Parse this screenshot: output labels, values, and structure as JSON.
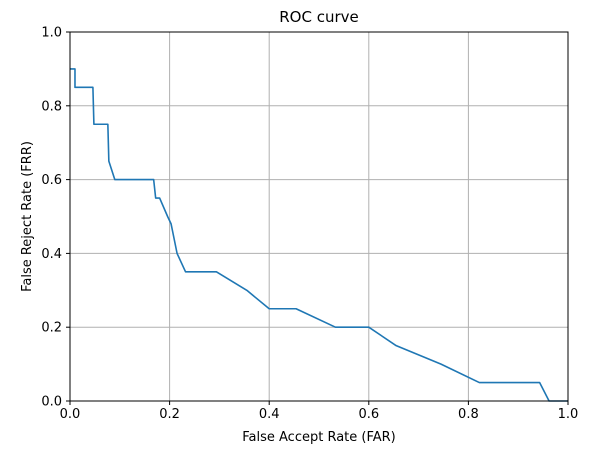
{
  "chart_data": {
    "type": "line",
    "title": "ROC curve",
    "xlabel": "False Accept Rate (FAR)",
    "ylabel": "False Reject Rate (FRR)",
    "xlim": [
      0,
      1
    ],
    "ylim": [
      0,
      1
    ],
    "xticks": [
      0.0,
      0.2,
      0.4,
      0.6,
      0.8,
      1.0
    ],
    "yticks": [
      0.0,
      0.2,
      0.4,
      0.6,
      0.8,
      1.0
    ],
    "xtick_labels": [
      "0.0",
      "0.2",
      "0.4",
      "0.6",
      "0.8",
      "1.0"
    ],
    "ytick_labels": [
      "0.0",
      "0.2",
      "0.4",
      "0.6",
      "0.8",
      "1.0"
    ],
    "grid": true,
    "series": [
      {
        "color": "#1f77b4",
        "x": [
          0.0,
          0.01,
          0.01,
          0.046,
          0.048,
          0.076,
          0.078,
          0.09,
          0.168,
          0.172,
          0.18,
          0.196,
          0.203,
          0.215,
          0.232,
          0.294,
          0.355,
          0.4,
          0.454,
          0.533,
          0.6,
          0.655,
          0.745,
          0.822,
          0.943,
          0.962,
          1.0
        ],
        "y": [
          0.9,
          0.9,
          0.85,
          0.85,
          0.75,
          0.75,
          0.65,
          0.6,
          0.6,
          0.55,
          0.55,
          0.5,
          0.48,
          0.4,
          0.35,
          0.35,
          0.3,
          0.25,
          0.25,
          0.2,
          0.2,
          0.15,
          0.1,
          0.05,
          0.05,
          0.0,
          0.0
        ]
      }
    ]
  }
}
